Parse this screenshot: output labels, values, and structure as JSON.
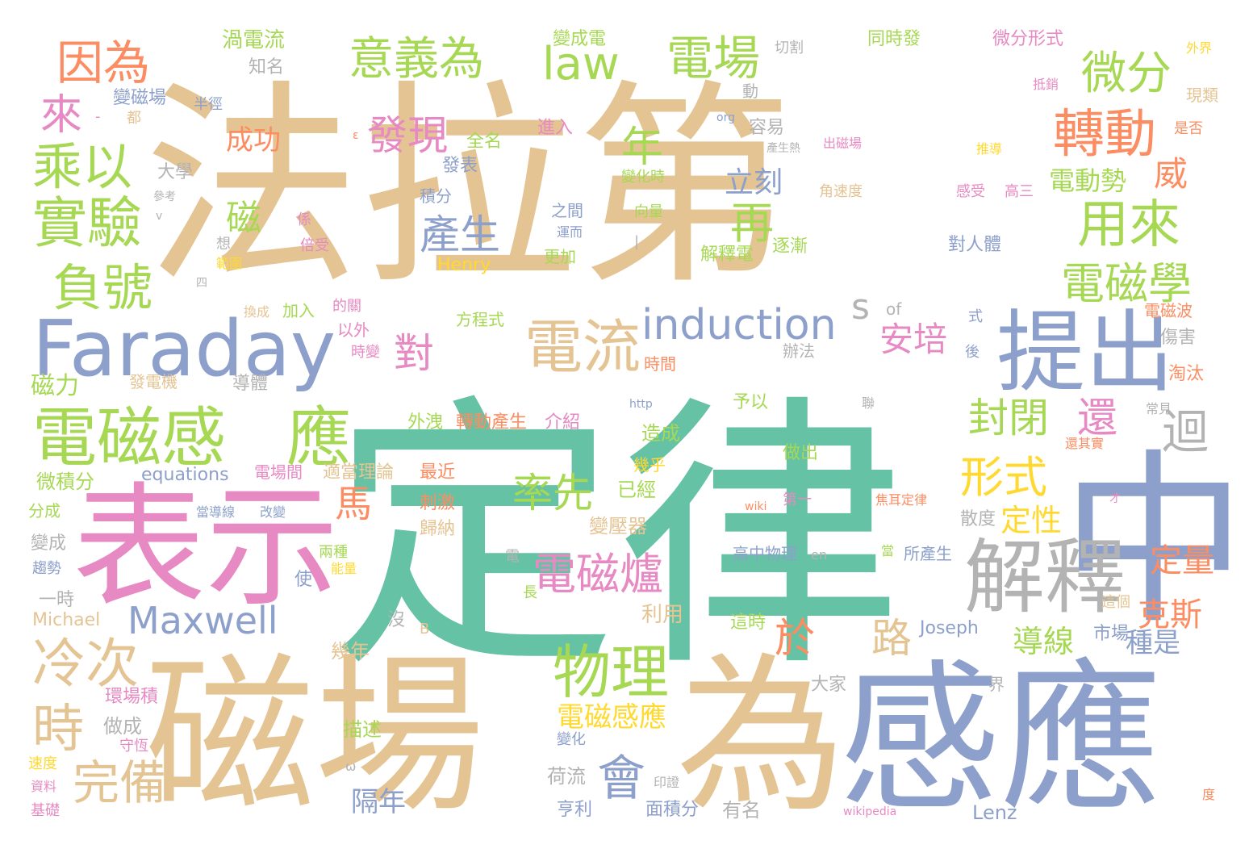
{
  "palette": {
    "gold": "#e5c494",
    "teal": "#66c2a5",
    "blue": "#8da0cb",
    "pink": "#e78ac3",
    "green": "#a6d854",
    "orange": "#fc8d62",
    "yellow": "#ffd92f",
    "gray": "#b3b3b3"
  },
  "words": [
    {
      "text": "法拉第",
      "color": "gold"
    },
    {
      "text": "定律",
      "color": "teal"
    },
    {
      "text": "磁場",
      "color": "gold"
    },
    {
      "text": "為",
      "color": "gold"
    },
    {
      "text": "感應",
      "color": "blue"
    },
    {
      "text": "中",
      "color": "blue"
    },
    {
      "text": "表示",
      "color": "pink"
    },
    {
      "text": "Faraday",
      "color": "blue"
    },
    {
      "text": "提出",
      "color": "blue"
    },
    {
      "text": "解釋",
      "color": "gray"
    },
    {
      "text": "電磁感",
      "color": "green"
    },
    {
      "text": "應",
      "color": "green"
    },
    {
      "text": "物理",
      "color": "green"
    },
    {
      "text": "電流",
      "color": "gold"
    },
    {
      "text": "induction",
      "color": "blue"
    },
    {
      "text": "轉動",
      "color": "orange"
    },
    {
      "text": "用來",
      "color": "green"
    },
    {
      "text": "電磁學",
      "color": "green"
    },
    {
      "text": "實驗",
      "color": "green"
    },
    {
      "text": "乘以",
      "color": "green"
    },
    {
      "text": "負號",
      "color": "green"
    },
    {
      "text": "因為",
      "color": "orange"
    },
    {
      "text": "意義為",
      "color": "green"
    },
    {
      "text": "law",
      "color": "green"
    },
    {
      "text": "電場",
      "color": "green"
    },
    {
      "text": "微分",
      "color": "green"
    },
    {
      "text": "冷次",
      "color": "gold"
    },
    {
      "text": "時",
      "color": "gold"
    },
    {
      "text": "完備",
      "color": "gold"
    },
    {
      "text": "Maxwell",
      "color": "blue"
    },
    {
      "text": "電磁爐",
      "color": "pink"
    },
    {
      "text": "會",
      "color": "blue"
    },
    {
      "text": "形式",
      "color": "yellow"
    },
    {
      "text": "封閉",
      "color": "green"
    },
    {
      "text": "還",
      "color": "pink"
    },
    {
      "text": "迴",
      "color": "gray"
    },
    {
      "text": "率先",
      "color": "green"
    },
    {
      "text": "發現",
      "color": "pink"
    },
    {
      "text": "產生",
      "color": "blue"
    },
    {
      "text": "再",
      "color": "green"
    },
    {
      "text": "年",
      "color": "green"
    },
    {
      "text": "立刻",
      "color": "blue"
    },
    {
      "text": "安培",
      "color": "pink"
    },
    {
      "text": "對",
      "color": "pink"
    },
    {
      "text": "馬",
      "color": "orange"
    },
    {
      "text": "路",
      "color": "gold"
    },
    {
      "text": "於",
      "color": "orange"
    },
    {
      "text": "克斯",
      "color": "orange"
    },
    {
      "text": "定量",
      "color": "orange"
    },
    {
      "text": "定性",
      "color": "yellow"
    },
    {
      "text": "威",
      "color": "orange"
    },
    {
      "text": "來",
      "color": "pink"
    },
    {
      "text": "磁",
      "color": "green"
    },
    {
      "text": "s",
      "color": "gray"
    },
    {
      "text": "成功",
      "color": "orange"
    },
    {
      "text": "電動勢",
      "color": "green"
    },
    {
      "text": "導線",
      "color": "green"
    },
    {
      "text": "種是",
      "color": "blue"
    },
    {
      "text": "電磁感應",
      "color": "yellow"
    },
    {
      "text": "磁力",
      "color": "green"
    },
    {
      "text": "微積分",
      "color": "green"
    },
    {
      "text": "equations",
      "color": "blue"
    },
    {
      "text": "外洩",
      "color": "green"
    },
    {
      "text": "轉動產生",
      "color": "orange"
    },
    {
      "text": "介紹",
      "color": "pink"
    },
    {
      "text": "造成",
      "color": "green"
    },
    {
      "text": "最近",
      "color": "orange"
    },
    {
      "text": "適當理論",
      "color": "gold"
    },
    {
      "text": "電場間",
      "color": "pink"
    },
    {
      "text": "已經",
      "color": "green"
    },
    {
      "text": "幾乎",
      "color": "yellow"
    },
    {
      "text": "刺激",
      "color": "orange"
    },
    {
      "text": "歸納",
      "color": "gold"
    },
    {
      "text": "變壓器",
      "color": "gold"
    },
    {
      "text": "Joseph",
      "color": "blue"
    },
    {
      "text": "隔年",
      "color": "blue"
    },
    {
      "text": "Lenz",
      "color": "blue"
    },
    {
      "text": "描述",
      "color": "green"
    },
    {
      "text": "荷流",
      "color": "gray"
    },
    {
      "text": "亨利",
      "color": "blue"
    },
    {
      "text": "面積分",
      "color": "blue"
    },
    {
      "text": "有名",
      "color": "gray"
    },
    {
      "text": "做成",
      "color": "gray"
    },
    {
      "text": "環場積",
      "color": "pink"
    },
    {
      "text": "守恆",
      "color": "pink"
    },
    {
      "text": "速度",
      "color": "yellow"
    },
    {
      "text": "資料",
      "color": "pink"
    },
    {
      "text": "基礎",
      "color": "pink"
    },
    {
      "text": "Michael",
      "color": "gold"
    },
    {
      "text": "一時",
      "color": "gray"
    },
    {
      "text": "趨勢",
      "color": "blue"
    },
    {
      "text": "變成",
      "color": "gray"
    },
    {
      "text": "分成",
      "color": "green"
    },
    {
      "text": "兩種",
      "color": "green"
    },
    {
      "text": "能量",
      "color": "yellow"
    },
    {
      "text": "使",
      "color": "blue"
    },
    {
      "text": "沒",
      "color": "gray"
    },
    {
      "text": "B",
      "color": "gold"
    },
    {
      "text": "幾年",
      "color": "gold"
    },
    {
      "text": "利用",
      "color": "gold"
    },
    {
      "text": "電",
      "color": "gray"
    },
    {
      "text": "長",
      "color": "green"
    },
    {
      "text": "高中物理",
      "color": "blue"
    },
    {
      "text": "en",
      "color": "gray"
    },
    {
      "text": "當",
      "color": "green"
    },
    {
      "text": "所產生",
      "color": "blue"
    },
    {
      "text": "這時",
      "color": "green"
    },
    {
      "text": "大家",
      "color": "gray"
    },
    {
      "text": "界",
      "color": "gray"
    },
    {
      "text": "這個",
      "color": "gold"
    },
    {
      "text": "市場",
      "color": "blue"
    },
    {
      "text": "渦電流",
      "color": "green"
    },
    {
      "text": "知名",
      "color": "gray"
    },
    {
      "text": "變成電",
      "color": "green"
    },
    {
      "text": "同時發",
      "color": "green"
    },
    {
      "text": "微分形式",
      "color": "pink"
    },
    {
      "text": "切割",
      "color": "gray"
    },
    {
      "text": "外界",
      "color": "yellow"
    },
    {
      "text": "變磁場",
      "color": "blue"
    },
    {
      "text": "半徑",
      "color": "blue"
    },
    {
      "text": "都",
      "color": "gold"
    },
    {
      "text": "動",
      "color": "gray"
    },
    {
      "text": "抵銷",
      "color": "pink"
    },
    {
      "text": "現類",
      "color": "gold"
    },
    {
      "text": "org",
      "color": "blue"
    },
    {
      "text": "容易",
      "color": "gray"
    },
    {
      "text": "進入",
      "color": "pink"
    },
    {
      "text": "是否",
      "color": "orange"
    },
    {
      "text": "全名",
      "color": "green"
    },
    {
      "text": "產生熱",
      "color": "gray"
    },
    {
      "text": "出磁場",
      "color": "pink"
    },
    {
      "text": "推導",
      "color": "yellow"
    },
    {
      "text": "發表",
      "color": "blue"
    },
    {
      "text": "大學",
      "color": "gray"
    },
    {
      "text": "參考",
      "color": "gray"
    },
    {
      "text": "v",
      "color": "gray"
    },
    {
      "text": "積分",
      "color": "blue"
    },
    {
      "text": "變化時",
      "color": "green"
    },
    {
      "text": "角速度",
      "color": "gold"
    },
    {
      "text": "感受",
      "color": "pink"
    },
    {
      "text": "高三",
      "color": "pink"
    },
    {
      "text": "之間",
      "color": "blue"
    },
    {
      "text": "運而",
      "color": "blue"
    },
    {
      "text": "向量",
      "color": "green"
    },
    {
      "text": "想",
      "color": "gray"
    },
    {
      "text": "係",
      "color": "pink"
    },
    {
      "text": "範圍",
      "color": "yellow"
    },
    {
      "text": "倍受",
      "color": "pink"
    },
    {
      "text": "逐漸",
      "color": "green"
    },
    {
      "text": "對人體",
      "color": "blue"
    },
    {
      "text": "四",
      "color": "gray"
    },
    {
      "text": "Henry",
      "color": "yellow"
    },
    {
      "text": "更加",
      "color": "green"
    },
    {
      "text": "解釋電",
      "color": "green"
    },
    {
      "text": "換成",
      "color": "gold"
    },
    {
      "text": "加入",
      "color": "green"
    },
    {
      "text": "的關",
      "color": "pink"
    },
    {
      "text": "方程式",
      "color": "green"
    },
    {
      "text": "of",
      "color": "gray"
    },
    {
      "text": "式",
      "color": "blue"
    },
    {
      "text": "電磁波",
      "color": "orange"
    },
    {
      "text": "以外",
      "color": "pink"
    },
    {
      "text": "時變",
      "color": "pink"
    },
    {
      "text": "辦法",
      "color": "gray"
    },
    {
      "text": "後",
      "color": "blue"
    },
    {
      "text": "傷害",
      "color": "gray"
    },
    {
      "text": "發電機",
      "color": "gold"
    },
    {
      "text": "導體",
      "color": "gray"
    },
    {
      "text": "時間",
      "color": "orange"
    },
    {
      "text": "淘汰",
      "color": "orange"
    },
    {
      "text": "http",
      "color": "blue"
    },
    {
      "text": "予以",
      "color": "green"
    },
    {
      "text": "聯",
      "color": "gray"
    },
    {
      "text": "常見",
      "color": "gray"
    },
    {
      "text": "還其實",
      "color": "orange"
    },
    {
      "text": "做出",
      "color": "green"
    },
    {
      "text": "wiki",
      "color": "orange"
    },
    {
      "text": "第一",
      "color": "pink"
    },
    {
      "text": "焦耳定律",
      "color": "orange"
    },
    {
      "text": "散度",
      "color": "gray"
    },
    {
      "text": "才",
      "color": "pink"
    },
    {
      "text": "當導線",
      "color": "blue"
    },
    {
      "text": "改變",
      "color": "blue"
    },
    {
      "text": "ω",
      "color": "gray"
    },
    {
      "text": "印證",
      "color": "gray"
    },
    {
      "text": "變化",
      "color": "blue"
    },
    {
      "text": "wikipedia",
      "color": "pink"
    },
    {
      "text": "度",
      "color": "orange"
    },
    {
      "text": "ε",
      "color": "orange"
    },
    {
      "text": "-",
      "color": "pink"
    },
    {
      "text": "|",
      "color": "gray"
    }
  ]
}
